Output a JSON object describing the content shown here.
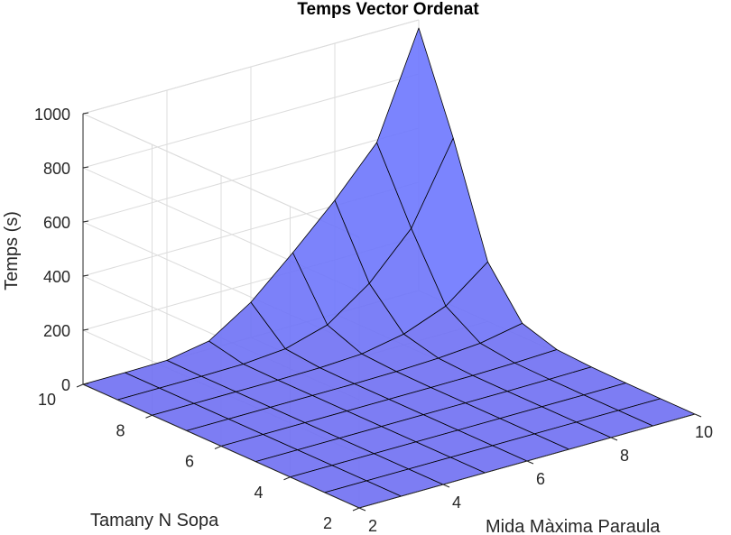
{
  "chart_data": {
    "type": "surface",
    "title": "Temps Vector Ordenat",
    "xlabel": "Mida Màxima Paraula",
    "ylabel": "Tamany N Sopa",
    "zlabel": "Temps (s)",
    "x_ticks": [
      2,
      4,
      6,
      8,
      10
    ],
    "y_ticks": [
      2,
      4,
      6,
      8,
      10
    ],
    "z_ticks": [
      0,
      200,
      400,
      600,
      800,
      1000
    ],
    "xlim": [
      2,
      10
    ],
    "ylim": [
      2,
      10
    ],
    "zlim": [
      0,
      1000
    ],
    "x": [
      2,
      3,
      4,
      5,
      6,
      7,
      8,
      9,
      10
    ],
    "y": [
      2,
      3,
      4,
      5,
      6,
      7,
      8,
      9,
      10
    ],
    "z_rows_note_free": true,
    "z": [
      [
        0,
        0,
        0,
        0,
        0,
        0,
        0,
        0,
        0
      ],
      [
        0,
        0,
        0,
        0,
        0,
        0,
        0,
        0,
        0
      ],
      [
        0,
        0,
        0,
        0,
        0,
        0,
        0,
        0,
        1
      ],
      [
        0,
        0,
        0,
        0,
        0,
        0,
        0,
        1,
        3
      ],
      [
        0,
        0,
        0,
        0,
        0,
        0,
        1,
        4,
        10
      ],
      [
        0,
        0,
        0,
        0,
        0,
        2,
        8,
        20,
        50
      ],
      [
        0,
        0,
        0,
        0,
        2,
        10,
        40,
        100,
        220
      ],
      [
        0,
        0,
        0,
        2,
        15,
        60,
        170,
        330,
        620
      ],
      [
        0,
        0,
        2,
        30,
        130,
        270,
        420,
        590,
        970
      ]
    ],
    "grid": true,
    "surface_color": "#6f6ff2",
    "edge_color": "#000000"
  }
}
